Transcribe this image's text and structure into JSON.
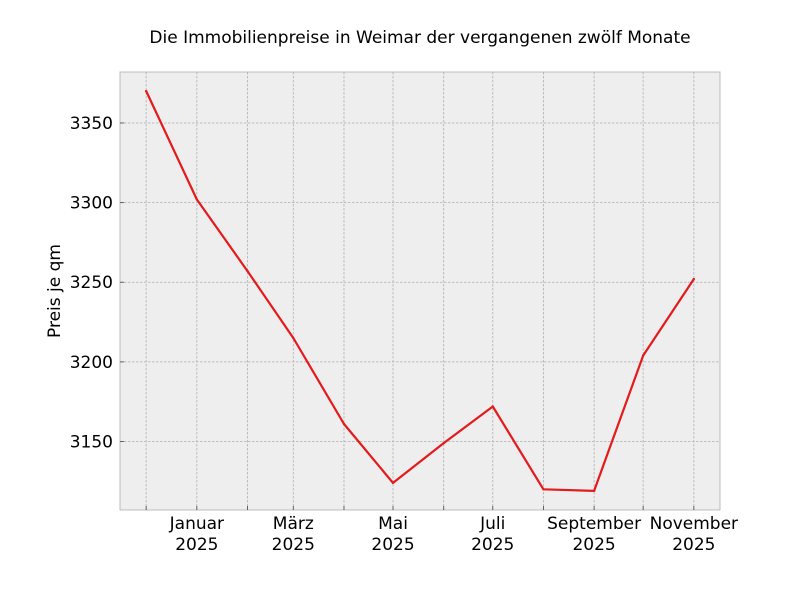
{
  "chart_data": {
    "type": "line",
    "title": "Die Immobilienpreise in Weimar der vergangenen zwölf Monate",
    "xlabel": "",
    "ylabel": "Preis je qm",
    "x": [
      "2024-12",
      "2025-01",
      "2025-02",
      "2025-03",
      "2025-04",
      "2025-05",
      "2025-06",
      "2025-07",
      "2025-08",
      "2025-09",
      "2025-10",
      "2025-11"
    ],
    "x_tick_labels": [
      {
        "month": "2025-01",
        "line1": "Januar",
        "line2": "2025"
      },
      {
        "month": "2025-03",
        "line1": "März",
        "line2": "2025"
      },
      {
        "month": "2025-05",
        "line1": "Mai",
        "line2": "2025"
      },
      {
        "month": "2025-07",
        "line1": "Juli",
        "line2": "2025"
      },
      {
        "month": "2025-09",
        "line1": "September",
        "line2": "2025"
      },
      {
        "month": "2025-11",
        "line1": "November",
        "line2": "2025"
      }
    ],
    "y_ticks": [
      3150,
      3200,
      3250,
      3300,
      3350
    ],
    "ylim": [
      3107,
      3382
    ],
    "xlim": [
      "2024-11-15",
      "2025-11-17"
    ],
    "grid": true,
    "series": [
      {
        "name": "",
        "color": "#e41a1c",
        "values": [
          3370,
          3302,
          3257,
          3215,
          3161,
          3124,
          3149,
          3172,
          3120,
          3119,
          3204,
          3252
        ]
      }
    ]
  }
}
